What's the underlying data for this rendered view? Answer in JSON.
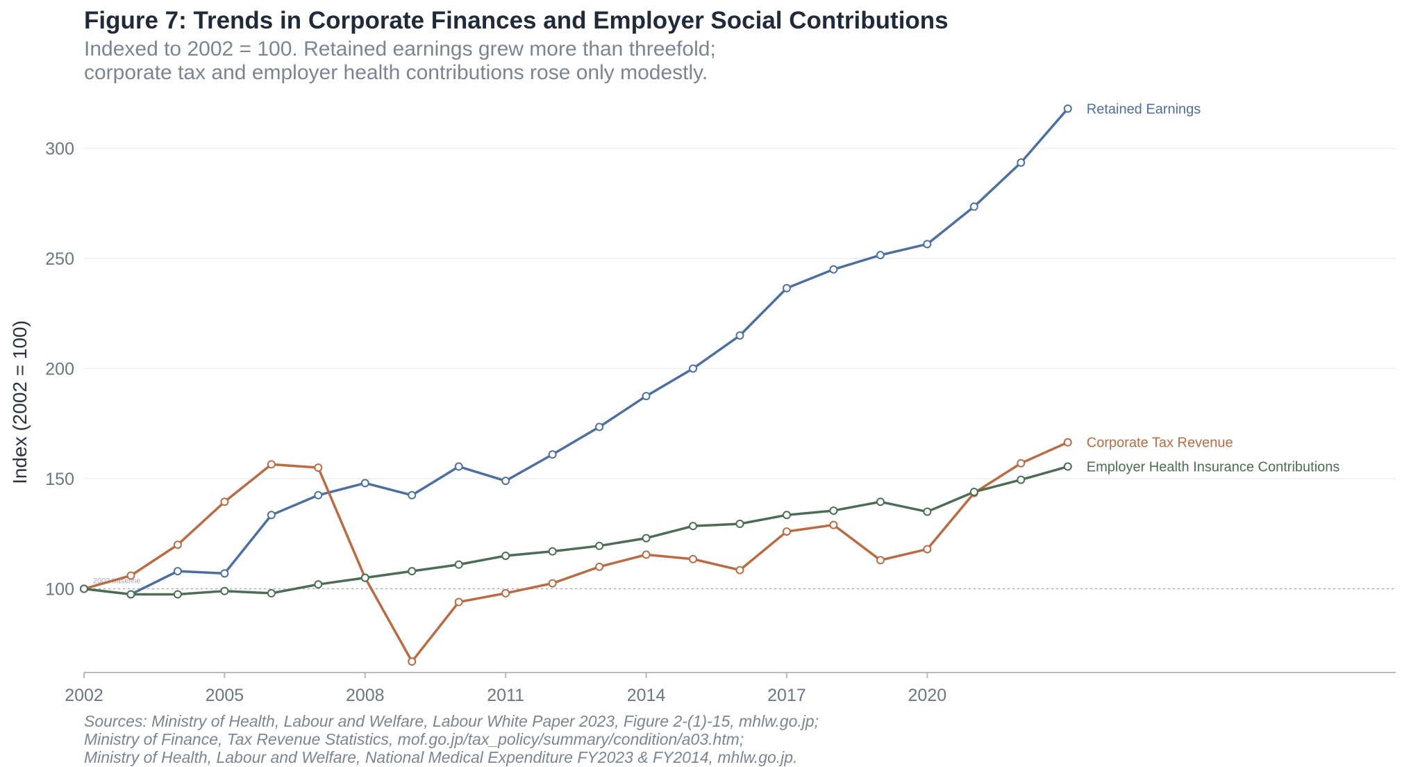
{
  "header": {
    "title": "Figure 7: Trends in Corporate Finances and Employer Social Contributions",
    "subtitle_lines": [
      "Indexed to 2002 = 100. Retained earnings grew more than threefold;",
      "corporate tax and employer health contributions rose only modestly."
    ]
  },
  "sources": [
    "Sources: Ministry of Health, Labour and Welfare, Labour White Paper 2023, Figure 2-(1)-15, mhlw.go.jp;",
    "Ministry of Finance, Tax Revenue Statistics, mof.go.jp/tax_policy/summary/condition/a03.htm;",
    "Ministry of Health, Labour and Welfare, National Medical Expenditure FY2023 & FY2014, mhlw.go.jp."
  ],
  "chart_data": {
    "type": "line",
    "title": "Figure 7: Trends in Corporate Finances and Employer Social Contributions",
    "ylabel": "Index (2002 = 100)",
    "xlabel": "",
    "x": [
      2002,
      2003,
      2004,
      2005,
      2006,
      2007,
      2008,
      2009,
      2010,
      2011,
      2012,
      2013,
      2014,
      2015,
      2016,
      2017,
      2018,
      2019,
      2020,
      2021,
      2022,
      2023
    ],
    "xlim": [
      2002,
      2030
    ],
    "ylim": [
      62,
      320
    ],
    "x_ticks": [
      2002,
      2005,
      2008,
      2011,
      2014,
      2017,
      2020
    ],
    "y_ticks": [
      100,
      150,
      200,
      250,
      300
    ],
    "grid": "horizontal",
    "legend": "direct labels at line ends",
    "baseline": {
      "value": 100,
      "label": "2002 baseline"
    },
    "series": [
      {
        "name": "Retained Earnings",
        "color": "#4a6fa5",
        "values": [
          100,
          97.5,
          108,
          107,
          133.5,
          142.5,
          148,
          142.5,
          155.5,
          149,
          161,
          173.5,
          187.5,
          200,
          215,
          236.5,
          245,
          251.5,
          256.5,
          273.5,
          293.5,
          318
        ]
      },
      {
        "name": "Corporate Tax Revenue",
        "color": "#c0683e",
        "values": [
          100,
          106,
          120,
          139.5,
          156.5,
          155,
          105,
          67,
          94,
          98,
          102.5,
          110,
          115.5,
          113.5,
          108.5,
          126,
          129,
          113,
          118,
          143.5,
          157,
          166.5
        ]
      },
      {
        "name": "Employer Health Insurance Contributions",
        "color": "#4a6e52",
        "values": [
          100,
          97.5,
          97.5,
          99,
          98,
          102,
          105,
          108,
          111,
          115,
          117,
          119.5,
          123,
          128.5,
          129.5,
          133.5,
          135.5,
          139.5,
          135,
          144,
          149.5,
          155.5
        ]
      }
    ]
  }
}
